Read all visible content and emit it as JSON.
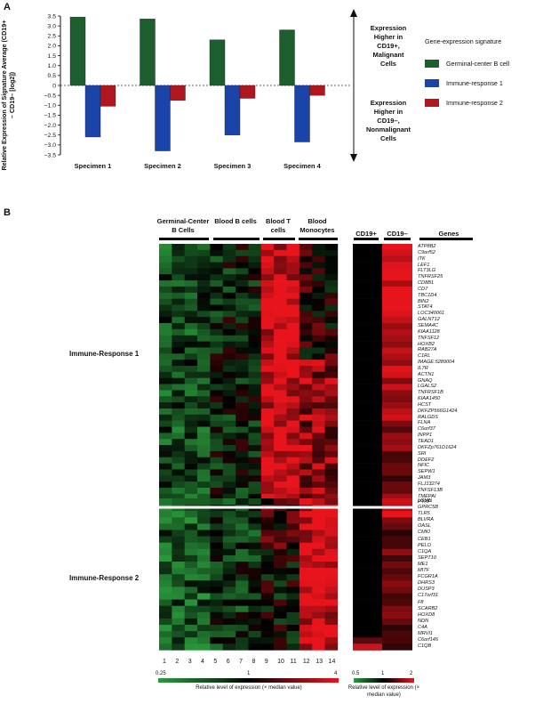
{
  "panel_a": {
    "label": "A",
    "annotation_upper": [
      "Expression",
      "Higher in",
      "CD19+,",
      "Malignant",
      "Cells"
    ],
    "annotation_lower": [
      "Expression",
      "Higher in",
      "CD19–,",
      "Nonmalignant",
      "Cells"
    ]
  },
  "panel_b": {
    "label": "B",
    "headers": [
      "Germinal-Center B Cells",
      "Blood B cells",
      "Blood T cells",
      "Blood Monocytes"
    ],
    "headers_right": [
      "CD19+",
      "CD19–",
      "Genes"
    ],
    "group_labels": [
      "Immune-Response 1",
      "Immune-Response 2"
    ],
    "column_numbers": [
      "1",
      "2",
      "3",
      "4",
      "5",
      "6",
      "7",
      "8",
      "9",
      "10",
      "11",
      "12",
      "13",
      "14"
    ],
    "scale_left": {
      "ticks": [
        "0.25",
        "1",
        "4"
      ],
      "label": "Relative level of expression (× median value)"
    },
    "scale_right": {
      "ticks": [
        "0.5",
        "1",
        "2"
      ],
      "label": "Relative level of expression (× median value)"
    },
    "colors": {
      "green": "#2a9a3c",
      "black": "#000000",
      "red": "#e8141c"
    },
    "genes_ir1": [
      "ATP8B2",
      "C9orf52",
      "ITK",
      "LEF1",
      "FLT3LG",
      "TNFRSF25",
      "CD8B1",
      "CD7",
      "TBC1D4",
      "BIN2",
      "STAT4",
      "LOC340061",
      "GALNT12",
      "SEMA4C",
      "KIAA1128",
      "TNFSF12",
      "HOXB2",
      "RAB27A",
      "C1RL",
      "IMAGE:5289004",
      "IL7R",
      "ACTN1",
      "GNAQ",
      "LGALS2",
      "TNFRSF1B",
      "KIAA1450",
      "HCST",
      "DKFZP566G1424",
      "RALGDS",
      "FLNA",
      "C6orf37",
      "INPP1",
      "TEAD1",
      "DKFZp761D1624",
      "SRI",
      "DDEF2",
      "NFIC",
      "SEPW1",
      "JAM3",
      "FLJ13274",
      "TNFSF13B",
      "TMEPAI",
      "PTRF"
    ],
    "genes_ir2": [
      "LGMN",
      "GPRC5B",
      "TLR5",
      "BLVRA",
      "OASL",
      "CMKI",
      "CEB1",
      "PELO",
      "C1QA",
      "SEPT10",
      "ME1",
      "MITF",
      "FCGR1A",
      "DHRS3",
      "DUSP3",
      "C17orf31",
      "F8",
      "SCARB2",
      "HOXD8",
      "NDN",
      "C4A",
      "MRVI1",
      "C6orf145",
      "C1QB"
    ]
  },
  "chart_data": {
    "type": "bar",
    "title": "",
    "ylabel": "Relative Expression of Signature Average (CD19+ – CD19– [log2])",
    "xlabel": "",
    "ylim": [
      -3.5,
      3.5
    ],
    "yticks": [
      "3.5",
      "3.0",
      "2.5",
      "2.0",
      "1.5",
      "1.0",
      "0.5",
      "0",
      "−0.5",
      "−1.0",
      "−1.5",
      "−2.0",
      "−2.5",
      "−3.0",
      "−3.5"
    ],
    "categories": [
      "Specimen 1",
      "Specimen 2",
      "Specimen 3",
      "Specimen 4"
    ],
    "legend_title": "Gene-expression signature",
    "legend_position": "right",
    "series": [
      {
        "name": "Germinal-center B cell",
        "color": "#1d5e2f",
        "values": [
          3.45,
          3.35,
          2.3,
          2.8
        ]
      },
      {
        "name": "Immune-response 1",
        "color": "#1b44a8",
        "values": [
          -2.6,
          -3.3,
          -2.5,
          -2.85
        ]
      },
      {
        "name": "Immune-response 2",
        "color": "#b0161e",
        "values": [
          -1.05,
          -0.75,
          -0.65,
          -0.5
        ]
      }
    ]
  }
}
